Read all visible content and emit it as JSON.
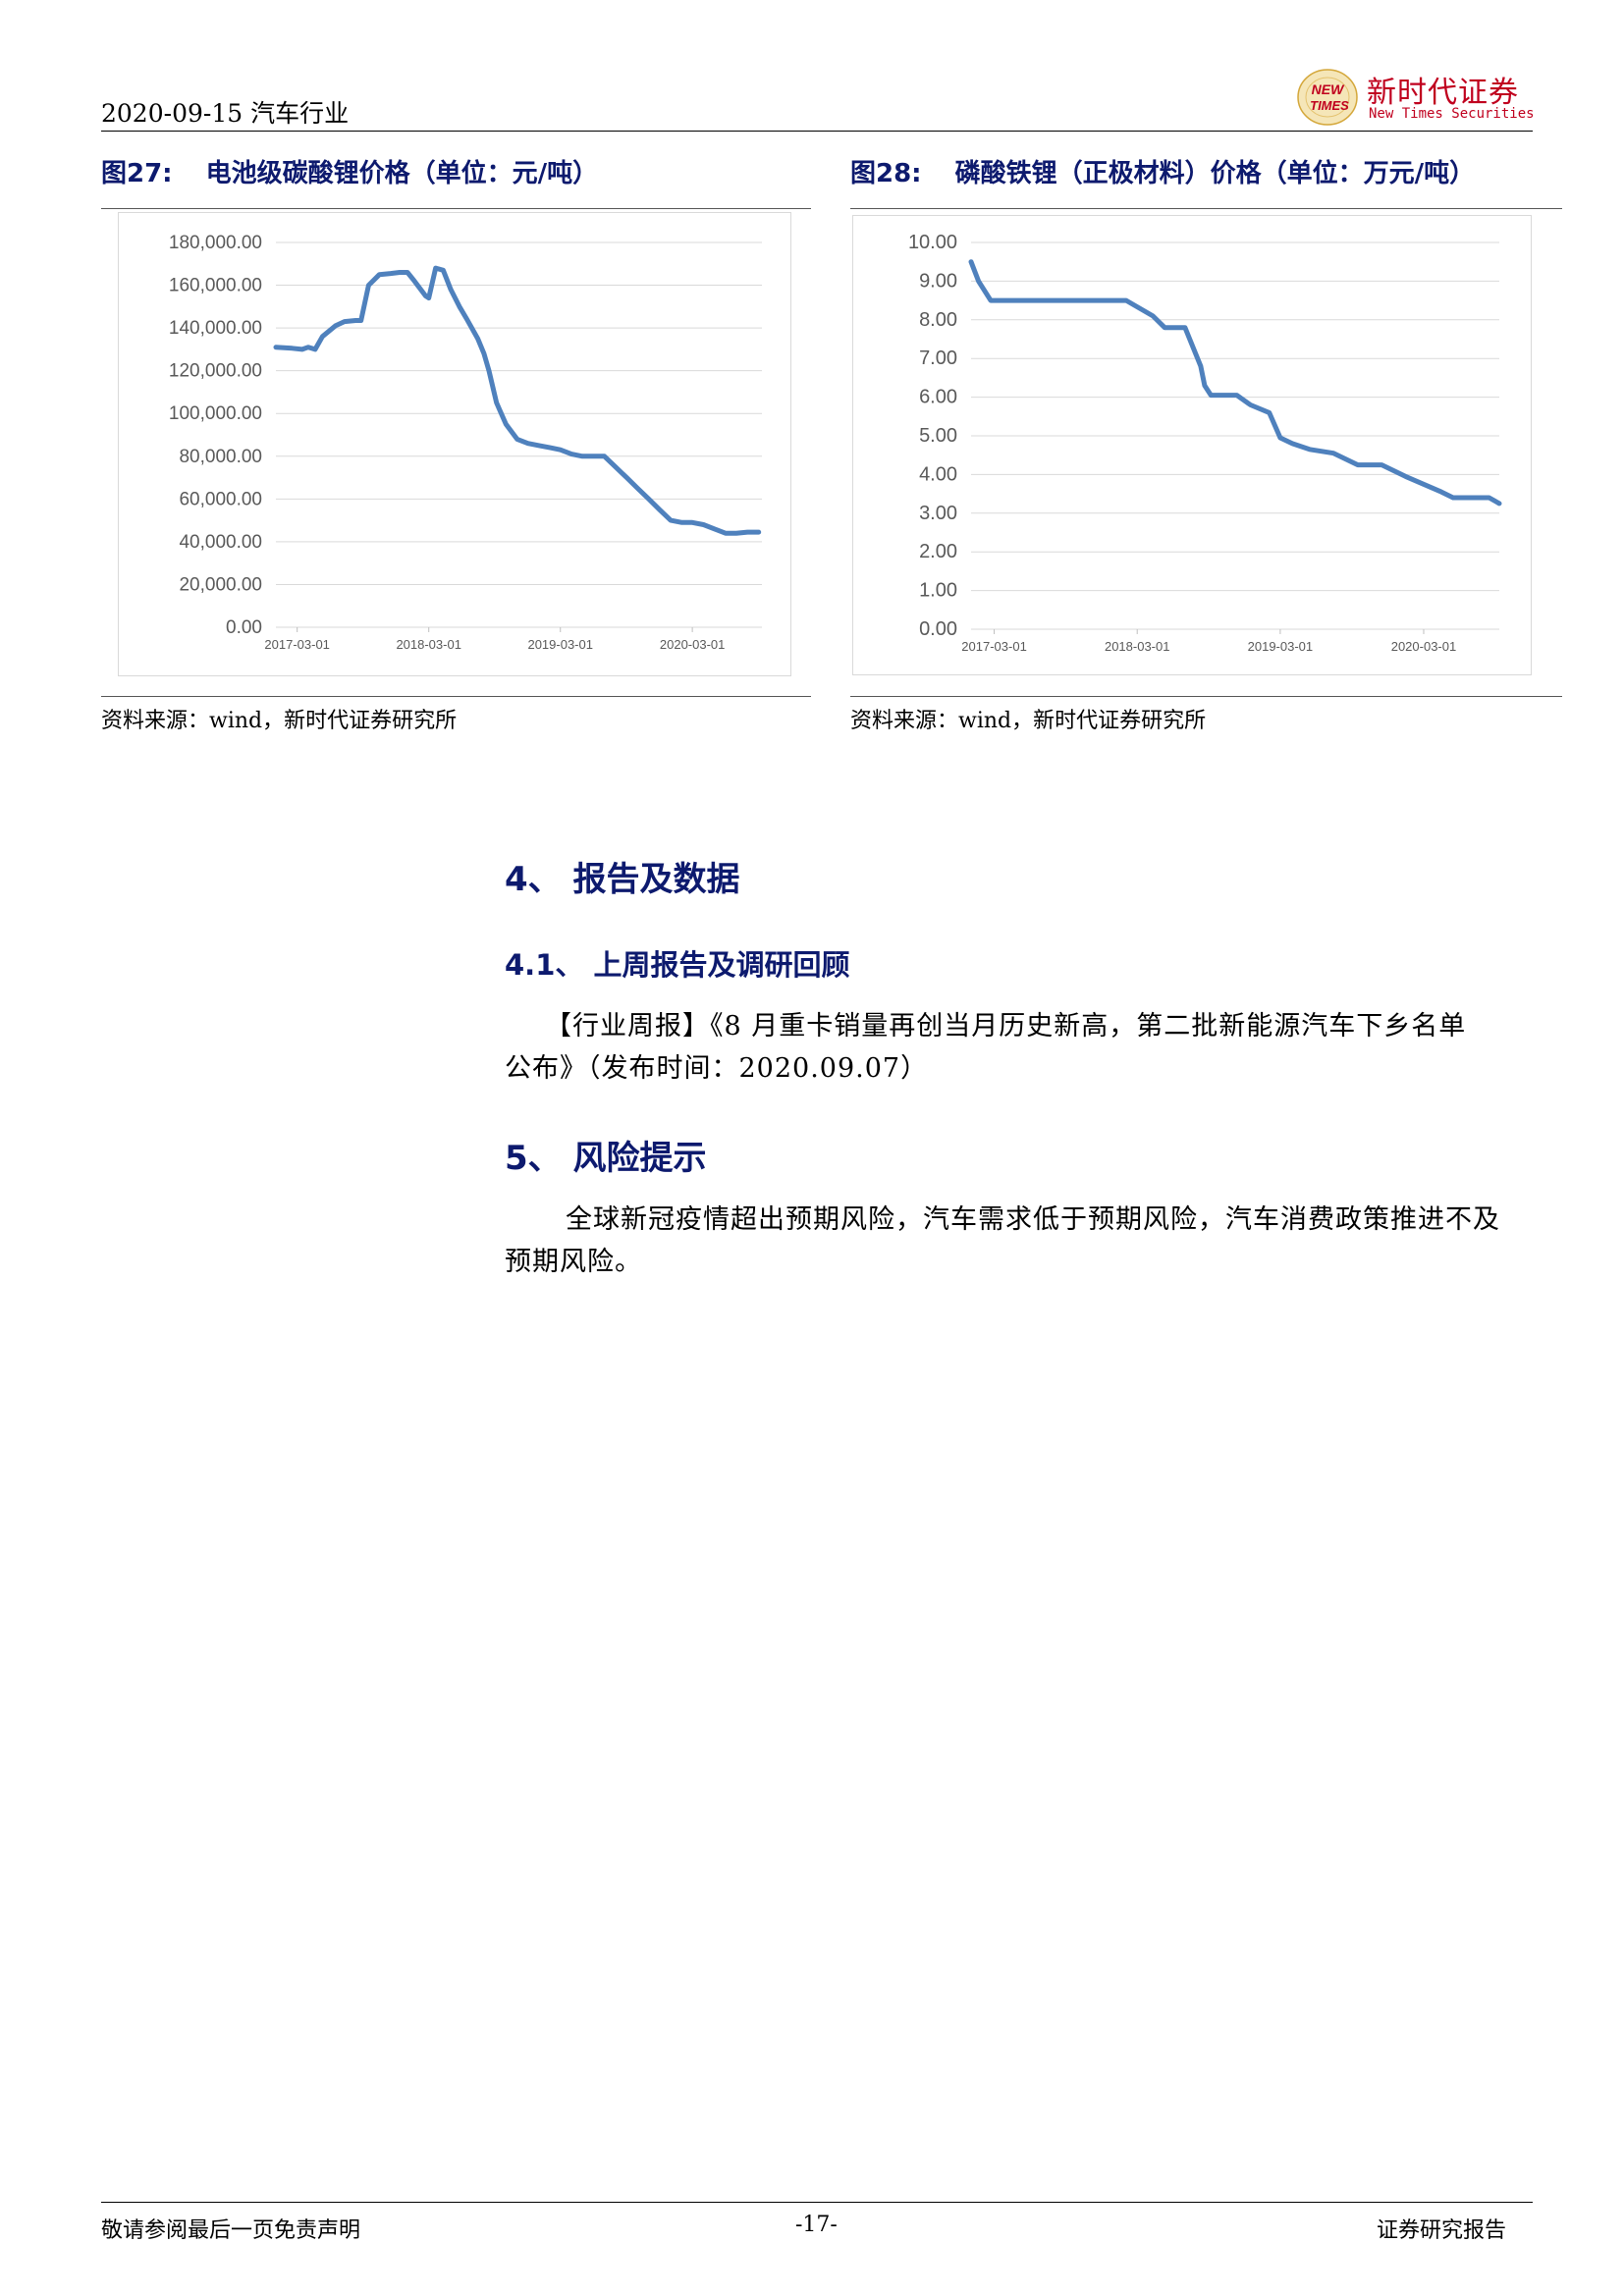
{
  "header": {
    "date_industry": "2020-09-15 汽车行业",
    "logo_cn": "新时代证券",
    "logo_en": "New Times Securities",
    "logo_badge_line1": "NEW",
    "logo_badge_line2": "TIMES"
  },
  "figures": [
    {
      "number": "图27:",
      "title": "电池级碳酸锂价格（单位：元/吨）",
      "source": "资料来源：wind，新时代证券研究所"
    },
    {
      "number": "图28:",
      "title": "磷酸铁锂（正极材料）价格（单位：万元/吨）",
      "source": "资料来源：wind，新时代证券研究所"
    }
  ],
  "chart_data": [
    {
      "type": "line",
      "title": "",
      "xlabel": "",
      "ylabel": "",
      "ylim": [
        0,
        180000
      ],
      "yticks": [
        "0.00",
        "20,000.00",
        "40,000.00",
        "60,000.00",
        "80,000.00",
        "100,000.00",
        "120,000.00",
        "140,000.00",
        "160,000.00",
        "180,000.00"
      ],
      "xticks": [
        "2017-03-01",
        "2018-03-01",
        "2019-03-01",
        "2020-03-01"
      ],
      "grid": true,
      "legend": "none",
      "line_color": "#4f81bd",
      "x": [
        "2017-01-01",
        "2017-02-15",
        "2017-03-15",
        "2017-04-01",
        "2017-04-20",
        "2017-05-10",
        "2017-06-15",
        "2017-07-10",
        "2017-08-10",
        "2017-08-25",
        "2017-09-15",
        "2017-10-15",
        "2017-11-15",
        "2017-12-10",
        "2018-01-01",
        "2018-01-20",
        "2018-02-20",
        "2018-03-01",
        "2018-03-20",
        "2018-04-10",
        "2018-05-01",
        "2018-05-25",
        "2018-06-15",
        "2018-07-15",
        "2018-08-01",
        "2018-08-15",
        "2018-09-05",
        "2018-10-01",
        "2018-11-01",
        "2018-12-01",
        "2019-01-01",
        "2019-02-01",
        "2019-03-01",
        "2019-04-01",
        "2019-05-01",
        "2019-06-01",
        "2019-07-01",
        "2019-08-01",
        "2019-09-01",
        "2019-10-01",
        "2019-11-01",
        "2019-12-01",
        "2020-01-01",
        "2020-02-01",
        "2020-03-01",
        "2020-04-01",
        "2020-05-01",
        "2020-06-01",
        "2020-07-01",
        "2020-08-01",
        "2020-09-01"
      ],
      "series": [
        {
          "values": [
            131000,
            130500,
            130000,
            131000,
            130000,
            136000,
            141000,
            143000,
            143500,
            143500,
            160000,
            165000,
            165500,
            166000,
            166000,
            162000,
            155000,
            154000,
            168000,
            167000,
            158000,
            150000,
            144000,
            135000,
            128000,
            120000,
            105000,
            95000,
            88000,
            86000,
            85000,
            84000,
            83000,
            81000,
            80000,
            80000,
            80000,
            75000,
            70000,
            65000,
            60000,
            55000,
            50000,
            49000,
            49000,
            48000,
            46000,
            44000,
            44000,
            44500,
            44500
          ]
        }
      ]
    },
    {
      "type": "line",
      "title": "",
      "xlabel": "",
      "ylabel": "",
      "ylim": [
        0,
        10
      ],
      "yticks": [
        "0.00",
        "1.00",
        "2.00",
        "3.00",
        "4.00",
        "5.00",
        "6.00",
        "7.00",
        "8.00",
        "9.00",
        "10.00"
      ],
      "xticks": [
        "2017-03-01",
        "2018-03-01",
        "2019-03-01",
        "2020-03-01"
      ],
      "grid": true,
      "legend": "none",
      "line_color": "#4f81bd",
      "x": [
        "2017-01-01",
        "2017-01-20",
        "2017-02-20",
        "2017-03-15",
        "2017-06-01",
        "2017-09-01",
        "2017-12-01",
        "2018-02-01",
        "2018-04-10",
        "2018-05-10",
        "2018-07-01",
        "2018-08-10",
        "2018-08-20",
        "2018-09-05",
        "2018-10-01",
        "2018-11-10",
        "2018-12-15",
        "2019-02-01",
        "2019-03-01",
        "2019-04-01",
        "2019-05-15",
        "2019-07-15",
        "2019-09-15",
        "2019-11-15",
        "2020-01-15",
        "2020-04-15",
        "2020-05-15",
        "2020-08-15",
        "2020-09-10"
      ],
      "series": [
        {
          "values": [
            9.5,
            9.0,
            8.5,
            8.5,
            8.5,
            8.5,
            8.5,
            8.5,
            8.1,
            7.8,
            7.8,
            6.8,
            6.3,
            6.05,
            6.05,
            6.05,
            5.8,
            5.6,
            4.95,
            4.8,
            4.65,
            4.55,
            4.25,
            4.25,
            3.95,
            3.55,
            3.4,
            3.4,
            3.25
          ]
        }
      ]
    }
  ],
  "sections": {
    "s4_heading": "4、 报告及数据",
    "s41_heading": "4.1、 上周报告及调研回顾",
    "s41_para_line1": "【行业周报】《8 月重卡销量再创当月历史新高，第二批新能源汽车下乡名单",
    "s41_para_line2": "公布》（发布时间：2020.09.07）",
    "s5_heading": "5、 风险提示",
    "s5_para_line1": "全球新冠疫情超出预期风险，汽车需求低于预期风险，汽车消费政策推进不及",
    "s5_para_line2": "预期风险。"
  },
  "footer": {
    "left": "敬请参阅最后一页免责声明",
    "center": "-17-",
    "right": "证券研究报告"
  }
}
